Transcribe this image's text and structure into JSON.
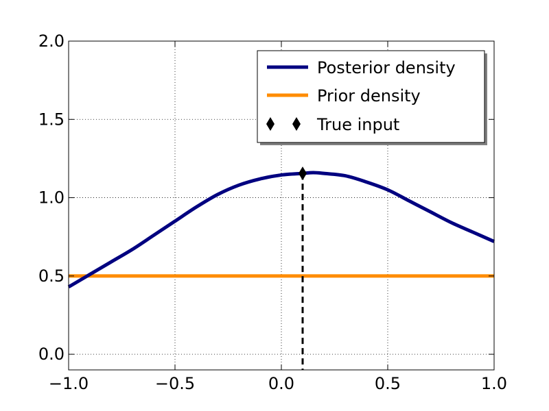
{
  "chart_data": {
    "type": "line",
    "title": "",
    "xlabel": "",
    "ylabel": "",
    "xlim": [
      -1.0,
      1.0
    ],
    "ylim": [
      -0.1,
      2.0
    ],
    "xticks": [
      -1.0,
      -0.5,
      0.0,
      0.5,
      1.0
    ],
    "xtick_labels": [
      "−1.0",
      "−0.5",
      "0.0",
      "0.5",
      "1.0"
    ],
    "yticks": [
      0.0,
      0.5,
      1.0,
      1.5,
      2.0
    ],
    "ytick_labels": [
      "0.0",
      "0.5",
      "1.0",
      "1.5",
      "2.0"
    ],
    "grid": true,
    "legend_position": "top-right",
    "series": [
      {
        "name": "Posterior density",
        "color": "#000080",
        "x": [
          -1.0,
          -0.9,
          -0.8,
          -0.7,
          -0.6,
          -0.5,
          -0.4,
          -0.3,
          -0.2,
          -0.1,
          0.0,
          0.1,
          0.15,
          0.2,
          0.3,
          0.4,
          0.5,
          0.6,
          0.7,
          0.8,
          0.9,
          1.0
        ],
        "y": [
          0.43,
          0.51,
          0.59,
          0.67,
          0.76,
          0.85,
          0.94,
          1.02,
          1.08,
          1.12,
          1.145,
          1.155,
          1.16,
          1.155,
          1.14,
          1.1,
          1.05,
          0.98,
          0.91,
          0.84,
          0.78,
          0.72
        ]
      },
      {
        "name": "Prior density",
        "color": "#ff8c00",
        "x": [
          -1.0,
          1.0
        ],
        "y": [
          0.5,
          0.5
        ]
      }
    ],
    "marker": {
      "name": "True input",
      "color": "#000000",
      "x": 0.1,
      "y": 1.155
    }
  }
}
